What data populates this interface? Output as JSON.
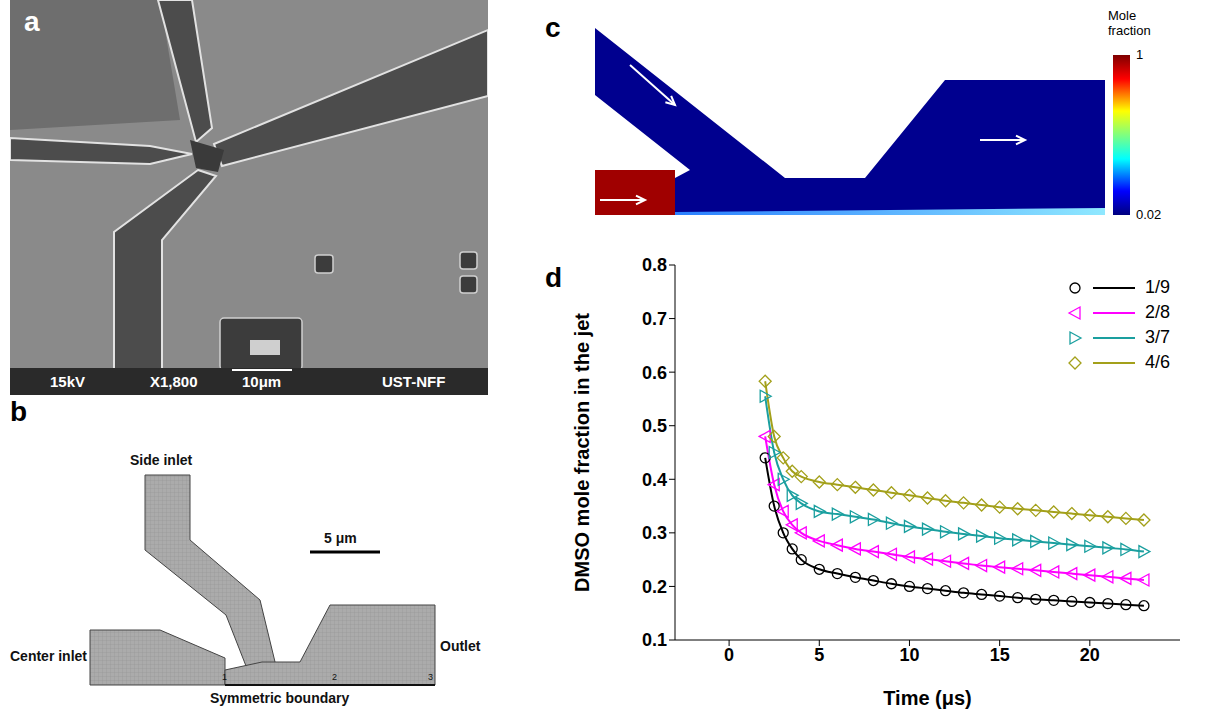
{
  "panels": {
    "a": {
      "letter": "a",
      "caption": [
        "15kV",
        "X1,800",
        "10μm",
        "UST-NFF"
      ]
    },
    "b": {
      "letter": "b",
      "labels": {
        "side_inlet": "Side inlet",
        "center_inlet": "Center inlet",
        "outlet": "Outlet",
        "boundary": "Symmetric boundary",
        "scale": "5 μm"
      },
      "regions": [
        "1",
        "2",
        "3"
      ]
    },
    "c": {
      "letter": "c",
      "colorbar": {
        "title": "Mole fraction",
        "range": [
          0.02,
          1
        ],
        "ticks": [
          1,
          0.02
        ]
      }
    },
    "d": {
      "letter": "d"
    }
  },
  "chart_data": {
    "type": "line",
    "x_label": "Time (μs)",
    "y_label": "DMSO mole fraction in the jet",
    "x": [
      2,
      2.5,
      3,
      3.5,
      4,
      5,
      6,
      7,
      8,
      9,
      10,
      11,
      12,
      13,
      14,
      15,
      16,
      17,
      18,
      19,
      20,
      21,
      22,
      23
    ],
    "series": [
      {
        "name": "1/9",
        "color": "#000000",
        "marker": "circle",
        "values": [
          0.44,
          0.35,
          0.3,
          0.27,
          0.25,
          0.232,
          0.224,
          0.217,
          0.211,
          0.205,
          0.2,
          0.196,
          0.192,
          0.188,
          0.185,
          0.182,
          0.179,
          0.176,
          0.174,
          0.172,
          0.17,
          0.168,
          0.166,
          0.164
        ]
      },
      {
        "name": "2/8",
        "color": "#ff00ff",
        "marker": "triangle-left",
        "values": [
          0.48,
          0.39,
          0.34,
          0.315,
          0.3,
          0.285,
          0.277,
          0.27,
          0.265,
          0.26,
          0.255,
          0.251,
          0.247,
          0.243,
          0.239,
          0.236,
          0.233,
          0.23,
          0.227,
          0.224,
          0.221,
          0.218,
          0.215,
          0.212
        ]
      },
      {
        "name": "3/7",
        "color": "#1a9f9f",
        "marker": "triangle-right",
        "values": [
          0.555,
          0.45,
          0.4,
          0.37,
          0.355,
          0.34,
          0.335,
          0.33,
          0.325,
          0.318,
          0.312,
          0.307,
          0.302,
          0.298,
          0.294,
          0.29,
          0.287,
          0.284,
          0.281,
          0.278,
          0.275,
          0.272,
          0.269,
          0.265
        ]
      },
      {
        "name": "4/6",
        "color": "#a3a01a",
        "marker": "diamond",
        "values": [
          0.583,
          0.48,
          0.44,
          0.415,
          0.405,
          0.395,
          0.39,
          0.385,
          0.38,
          0.375,
          0.37,
          0.365,
          0.36,
          0.356,
          0.352,
          0.348,
          0.345,
          0.342,
          0.339,
          0.336,
          0.333,
          0.33,
          0.327,
          0.324
        ]
      }
    ],
    "xlim": [
      -3,
      25
    ],
    "xticks": [
      0,
      5,
      10,
      15,
      20
    ],
    "ylim": [
      0.1,
      0.8
    ],
    "yticks": [
      0.1,
      0.2,
      0.3,
      0.4,
      0.5,
      0.6,
      0.7,
      0.8
    ],
    "legend": "upper right",
    "grid": false
  }
}
